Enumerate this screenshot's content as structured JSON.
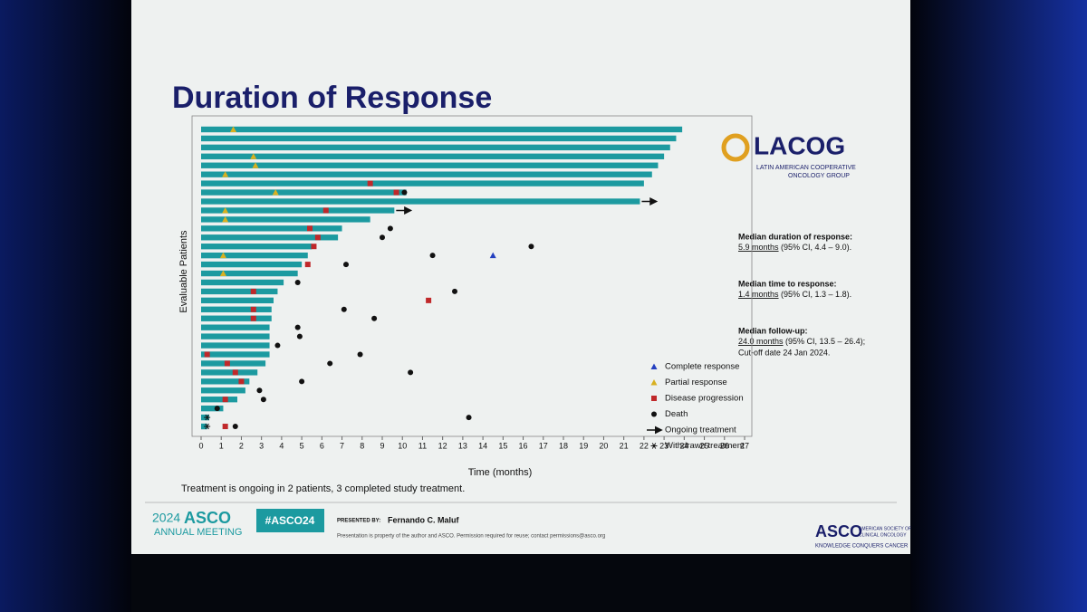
{
  "slide": {
    "title": "Duration of Response",
    "logo": "LACOG",
    "logo_sub": [
      "LATIN AMERICAN COOPERATIVE",
      "ONCOLOGY GROUP"
    ],
    "stats": [
      {
        "heading": "Median duration of response:",
        "value": "5.9 months",
        "rest": " (95% CI, 4.4 – 9.0).",
        "extra": null
      },
      {
        "heading": "Median time to response:",
        "value": "1.4 months",
        "rest": " (95% CI, 1.3 – 1.8).",
        "extra": null
      },
      {
        "heading": "Median follow-up:",
        "value": "24.0 months",
        "rest": " (95% CI, 13.5 – 26.4);",
        "extra": "Cut-off date 24 Jan 2024."
      }
    ],
    "footnote": "Treatment is ongoing in 2 patients, 3 completed study treatment.",
    "meeting_year": "2024",
    "meeting": "ASCO",
    "meeting_sub": "ANNUAL MEETING",
    "hashtag": "#ASCO24",
    "presented_by": "PRESENTED BY:",
    "presenter": "Fernando C. Maluf",
    "disclaimer": "Presentation is property of the author and ASCO. Permission required for reuse; contact permissions@asco.org",
    "asco": "ASCO",
    "asco_sub": [
      "AMERICAN SOCIETY OF",
      "CLINICAL ONCOLOGY"
    ],
    "asco_tagline": "KNOWLEDGE CONQUERS CANCER"
  },
  "chart_data": {
    "type": "swimmer",
    "x_label": "Time (months)",
    "y_label": "Evaluable Patients",
    "xlim": [
      0,
      27
    ],
    "xticks": [
      0,
      1,
      2,
      3,
      4,
      5,
      6,
      7,
      8,
      9,
      10,
      11,
      12,
      13,
      14,
      15,
      16,
      17,
      18,
      19,
      20,
      21,
      22,
      23,
      24,
      25,
      26,
      27
    ],
    "bar_color": "#1c9aa0",
    "legend": [
      {
        "key": "cr",
        "label": "Complete response",
        "color": "#2440c0",
        "marker": "triangle"
      },
      {
        "key": "pr",
        "label": "Partial response",
        "color": "#d8b020",
        "marker": "triangle"
      },
      {
        "key": "pd",
        "label": "Disease progression",
        "color": "#c0282a",
        "marker": "square"
      },
      {
        "key": "death",
        "label": "Death",
        "color": "#111111",
        "marker": "circle"
      },
      {
        "key": "ongoing",
        "label": "Ongoing treatment",
        "color": "#111111",
        "marker": "arrow"
      },
      {
        "key": "withdrawn",
        "label": "Withdrawn treatment",
        "color": "#111111",
        "marker": "asterisk"
      }
    ],
    "patients": [
      {
        "duration": 23.9,
        "pr": 1.6
      },
      {
        "duration": 23.6
      },
      {
        "duration": 23.3
      },
      {
        "duration": 23.0,
        "pr": 2.6
      },
      {
        "duration": 22.7,
        "pr": 2.7
      },
      {
        "duration": 22.4,
        "pr": 1.2
      },
      {
        "duration": 22.0,
        "pd": 8.4
      },
      {
        "duration": 10.2,
        "pr": 3.7,
        "pd": 9.7,
        "death": 10.1
      },
      {
        "duration": 21.8,
        "ongoing": true
      },
      {
        "duration": 9.6,
        "pr": 1.2,
        "pd": 6.2,
        "ongoing": true
      },
      {
        "duration": 8.4,
        "pr": 1.2
      },
      {
        "duration": 7.0,
        "pd": 5.4,
        "death": 9.4
      },
      {
        "duration": 6.8,
        "pd": 5.8,
        "death": 9.0
      },
      {
        "duration": 5.5,
        "pd": 5.6,
        "death": 16.4
      },
      {
        "duration": 5.3,
        "pr": 1.1,
        "death": 11.5,
        "cr": 14.5
      },
      {
        "duration": 5.0,
        "pd": 5.3,
        "death": 7.2
      },
      {
        "duration": 4.8,
        "pr": 1.1
      },
      {
        "duration": 4.1,
        "death": 4.8
      },
      {
        "duration": 3.8,
        "pd": 2.6,
        "death": 12.6
      },
      {
        "duration": 3.6,
        "pd": 11.3
      },
      {
        "duration": 3.5,
        "pd": 2.6,
        "death": 7.1
      },
      {
        "duration": 3.5,
        "pd": 2.6,
        "death": 8.6
      },
      {
        "duration": 3.4,
        "death": 4.8
      },
      {
        "duration": 3.4,
        "death": 4.9
      },
      {
        "duration": 3.4,
        "death": 3.8
      },
      {
        "duration": 3.4,
        "pd": 0.3,
        "death": 7.9
      },
      {
        "duration": 3.2,
        "pd": 1.3,
        "death": 6.4
      },
      {
        "duration": 2.8,
        "pd": 1.7,
        "death": 10.4
      },
      {
        "duration": 2.4,
        "pd": 2.0,
        "death": 5.0
      },
      {
        "duration": 2.2,
        "death": 2.9
      },
      {
        "duration": 1.8,
        "pd": 1.2,
        "death": 3.1
      },
      {
        "duration": 1.1,
        "death": 0.8
      },
      {
        "duration": 0.4,
        "withdrawn": 0.3,
        "death": 13.3
      },
      {
        "duration": 0.3,
        "withdrawn": 0.3,
        "pd": 1.2,
        "death": 1.7
      }
    ]
  }
}
